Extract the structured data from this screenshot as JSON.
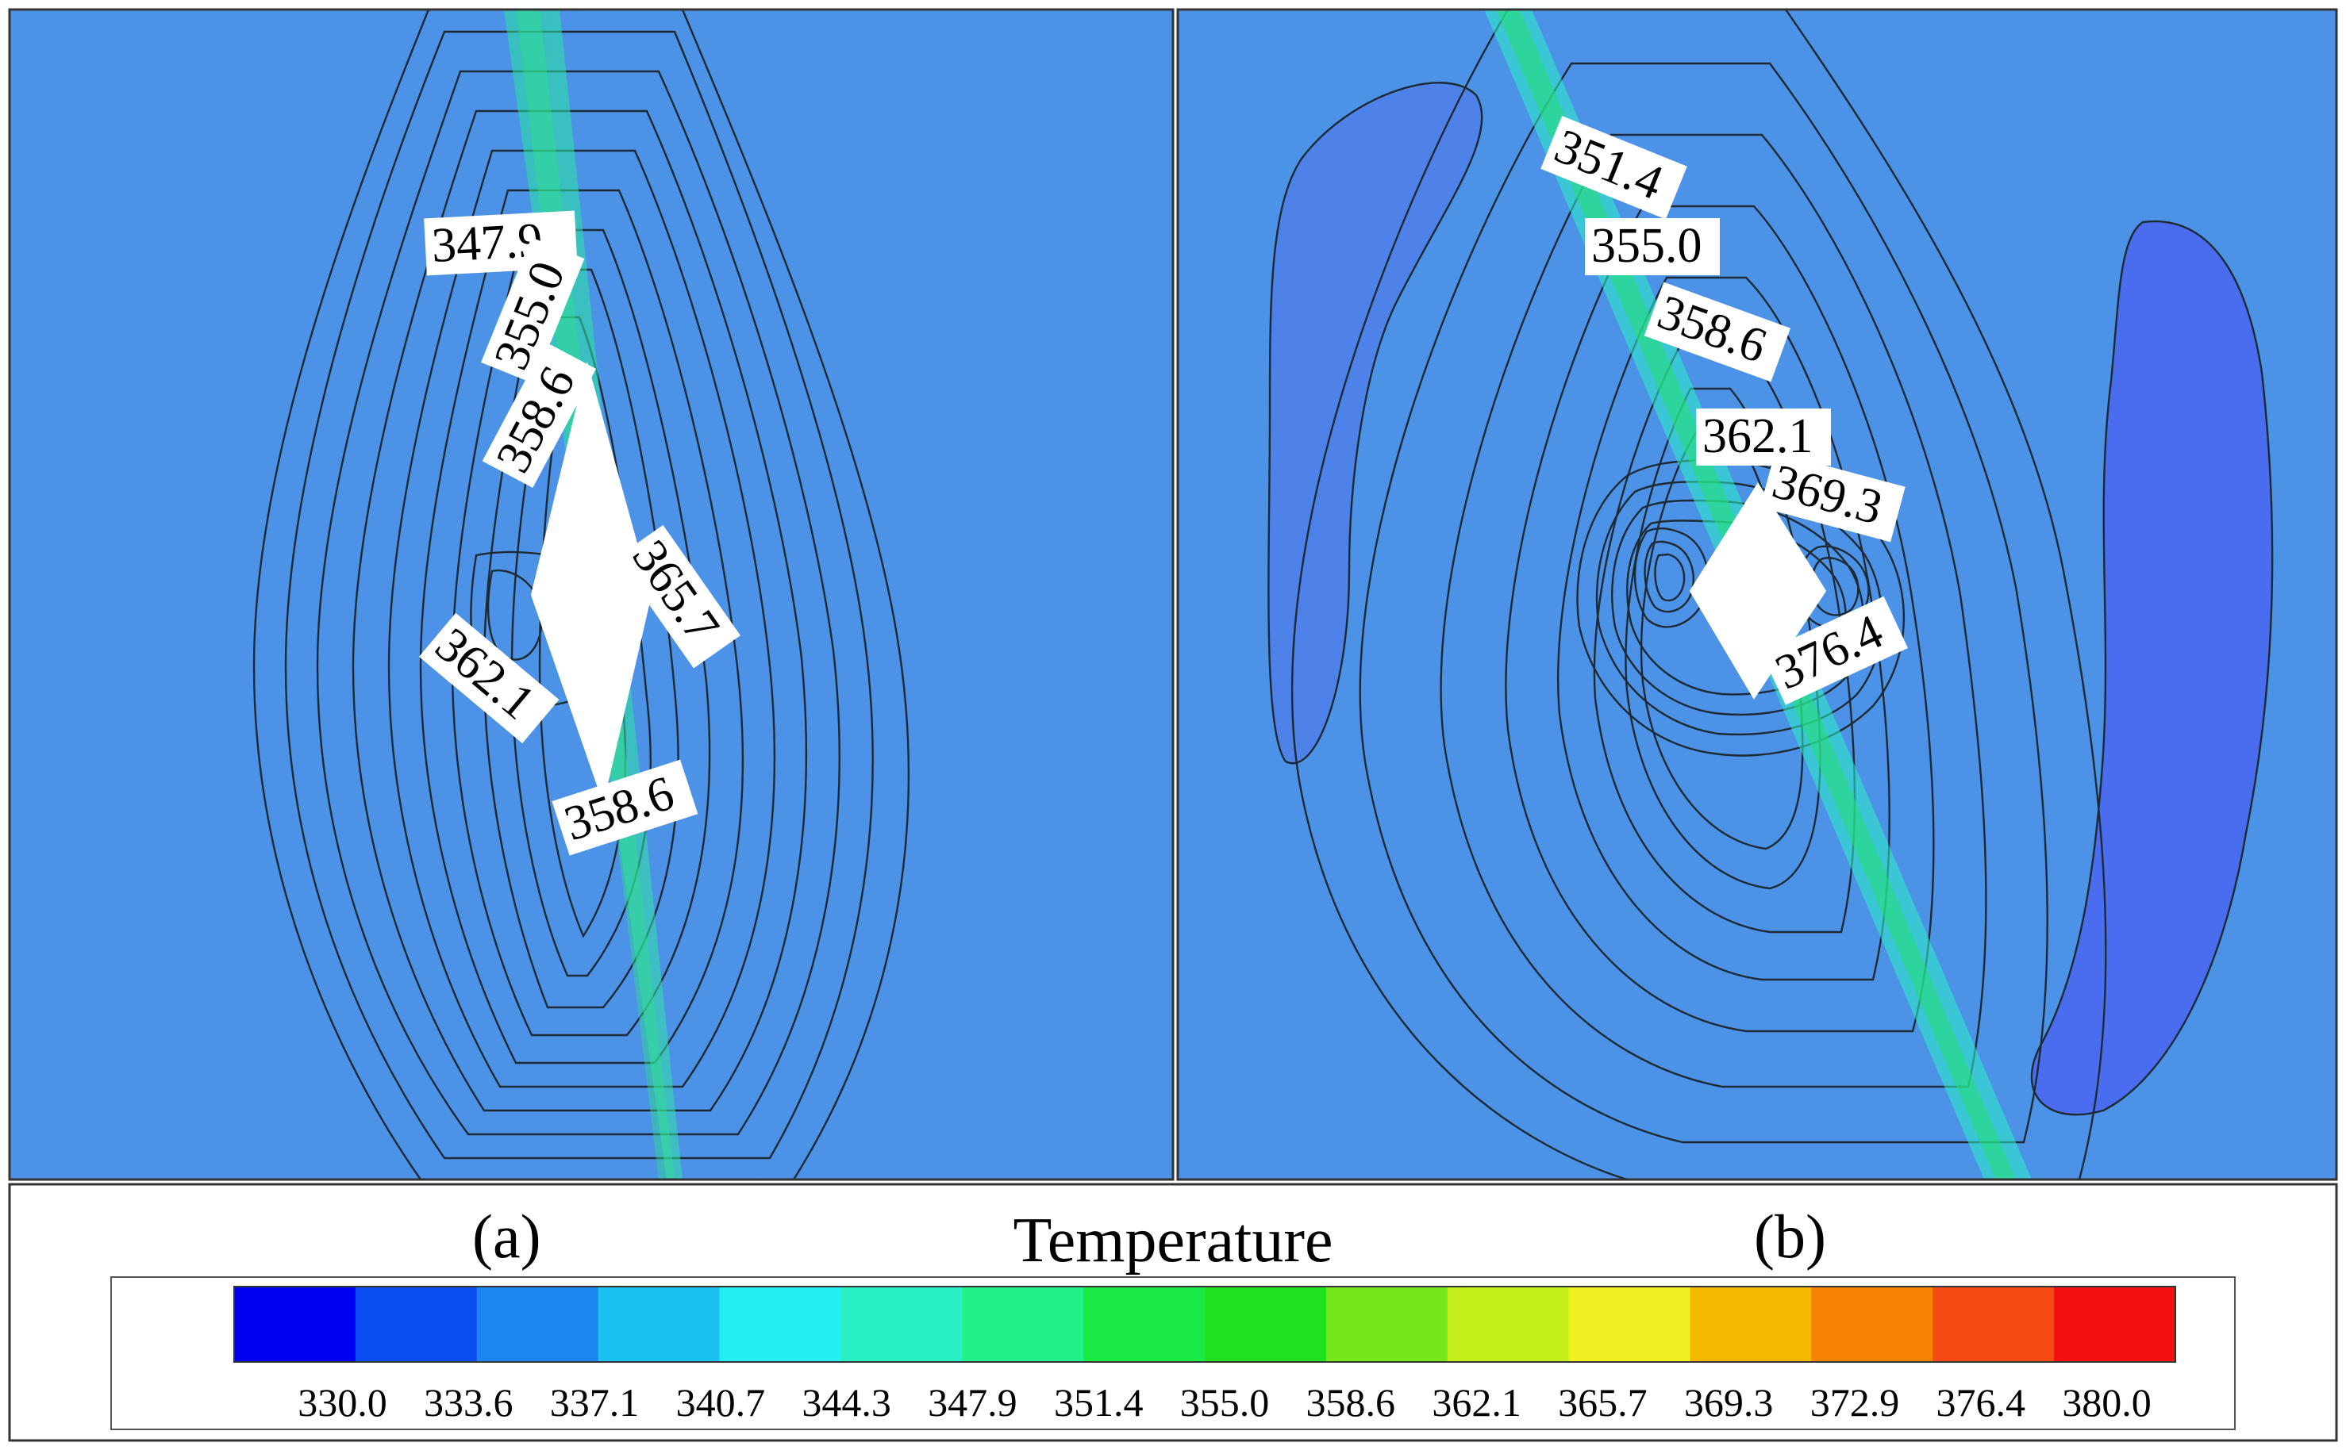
{
  "panels": [
    {
      "id": "a",
      "label": "(a)",
      "contour_labels": [
        "347.9",
        "355.0",
        "358.6",
        "365.7",
        "362.1",
        "358.6"
      ]
    },
    {
      "id": "b",
      "label": "(b)",
      "contour_labels": [
        "351.4",
        "355.0",
        "358.6",
        "362.1",
        "369.3",
        "376.4"
      ]
    }
  ],
  "legend": {
    "title": "Temperature",
    "ticks": [
      "330.0",
      "333.6",
      "337.1",
      "340.7",
      "344.3",
      "347.9",
      "351.4",
      "355.0",
      "358.6",
      "362.1",
      "365.7",
      "369.3",
      "372.9",
      "376.4",
      "380.0"
    ],
    "colors": [
      "#0000f0",
      "#0a4ef2",
      "#1b86f0",
      "#1bc1f0",
      "#25eef0",
      "#2af0c6",
      "#22f08a",
      "#1aeb44",
      "#20e020",
      "#74e61a",
      "#c4f01c",
      "#f0f020",
      "#f5b800",
      "#f58200",
      "#f54a14",
      "#f21010"
    ]
  }
}
